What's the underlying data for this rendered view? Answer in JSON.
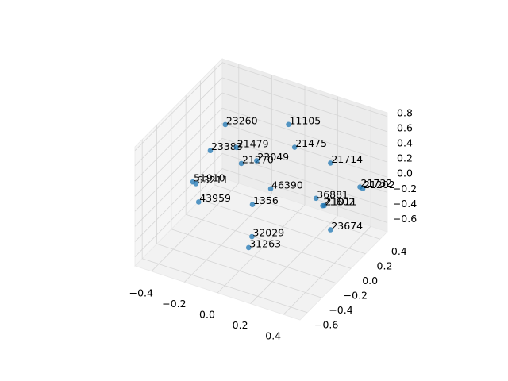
{
  "chart_data": {
    "type": "scatter3d",
    "color": "#1f77b4",
    "labels": [
      "23260",
      "11105",
      "21475",
      "23383",
      "21479",
      "21714",
      "21270",
      "23049",
      "51910",
      "63211",
      "46390",
      "21732",
      "21202",
      "43959",
      "1356",
      "36881",
      "21602",
      "21011",
      "23674",
      "32029",
      "31263"
    ],
    "x": [
      -0.27,
      0.06,
      0.15,
      -0.255,
      -0.15,
      0.42,
      -0.12,
      -0.08,
      -0.255,
      -0.236,
      0.005,
      0.44,
      0.457,
      -0.22,
      0.0,
      0.28,
      0.32,
      0.33,
      0.42,
      0.05,
      0.03
    ],
    "y": [
      0.02,
      0.14,
      0.02,
      -0.22,
      -0.1,
      -0.1,
      -0.1,
      0.02,
      -0.46,
      -0.46,
      0.02,
      0.26,
      0.26,
      -0.46,
      -0.22,
      0.02,
      0.02,
      0.02,
      -0.1,
      -0.34,
      -0.34
    ],
    "z": [
      0.61,
      0.73,
      0.61,
      0.51,
      0.51,
      0.71,
      0.32,
      0.27,
      0.33,
      0.32,
      -0.04,
      0.06,
      0.05,
      0.09,
      -0.02,
      0.03,
      -0.04,
      -0.03,
      -0.17,
      -0.29,
      -0.45
    ],
    "xlim": [
      -0.5,
      0.5
    ],
    "ylim": [
      -0.7,
      0.5
    ],
    "zlim": [
      -0.72,
      0.85
    ],
    "xticks": [
      {
        "value": -0.4,
        "label": "−0.4"
      },
      {
        "value": -0.2,
        "label": "−0.2"
      },
      {
        "value": 0,
        "label": "0.0"
      },
      0.2,
      0.4
    ],
    "yticks": [
      {
        "value": -0.6,
        "label": "−0.6"
      },
      {
        "value": -0.4,
        "label": "−0.4"
      },
      {
        "value": -0.2,
        "label": "−0.2"
      },
      {
        "value": 0,
        "label": "0.0"
      },
      0.2,
      0.4
    ],
    "zticks": [
      {
        "value": -0.6,
        "label": "−0.6"
      },
      {
        "value": -0.4,
        "label": "−0.4"
      },
      {
        "value": -0.2,
        "label": "−0.2"
      },
      {
        "value": 0,
        "label": "0.0"
      },
      0.2,
      0.4,
      0.6,
      0.8
    ],
    "grid": true
  }
}
